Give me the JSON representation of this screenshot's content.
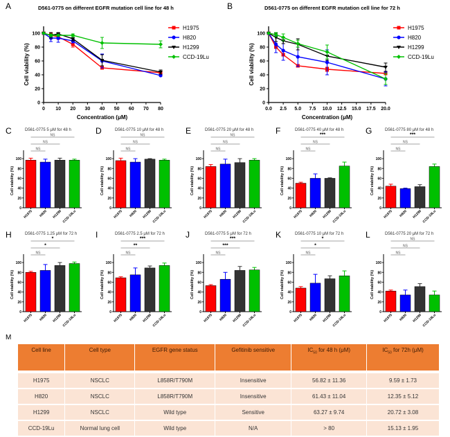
{
  "panels_lines": [
    {
      "label": "A",
      "title": "D561-0775 on different EGFR mutation cell line for 48 h",
      "xlabel": "Concentration  (μM)",
      "ylabel": "Cell viability (%)",
      "xticks": [
        "0",
        "10",
        "20",
        "30",
        "40",
        "50",
        "60",
        "70",
        "80"
      ],
      "yticks": [
        "0",
        "20",
        "40",
        "60",
        "80",
        "100"
      ]
    },
    {
      "label": "B",
      "title": "D561-0775 on different EGFR mutation cell line for 72 h",
      "xlabel": "Concentration  (μM)",
      "ylabel": "Cell viability (%)",
      "xticks": [
        "0.0",
        "2.5",
        "5.0",
        "7.5",
        "10.0",
        "12.5",
        "15.0",
        "17.5",
        "20.0"
      ],
      "yticks": [
        "0",
        "20",
        "40",
        "60",
        "80",
        "100"
      ]
    }
  ],
  "legend": [
    "H1975",
    "H820",
    "H1299",
    "CCD-19Lu"
  ],
  "colors": {
    "H1975": "#ff0000",
    "H820": "#0000ff",
    "H1299": "#000000",
    "CCD-19Lu": "#00c000",
    "bar_H1299": "#333333",
    "table_header": "#ed7d31",
    "table_row": "#fbe4d5"
  },
  "bar_panels": [
    {
      "label": "C",
      "title": "D561-0775 5 μM  for 48 h",
      "ylabel": "Cell viability (%)",
      "sig": [
        "NS",
        "NS",
        "NS"
      ]
    },
    {
      "label": "D",
      "title": "D561-0775 10 μM  for 48 h",
      "ylabel": "Cell viability (%)",
      "sig": [
        "NS",
        "NS",
        "NS"
      ]
    },
    {
      "label": "E",
      "title": "D561-0775 20 μM  for 48 h",
      "ylabel": "Cell viability (%)",
      "sig": [
        "NS",
        "NS",
        "NS"
      ]
    },
    {
      "label": "F",
      "title": "D561-0775 40 μM  for 48 h",
      "ylabel": "Cell viability (%)",
      "sig": [
        "NS",
        "NS",
        "***"
      ]
    },
    {
      "label": "G",
      "title": "D561-0775 80 μM  for 48 h",
      "ylabel": "Cell viability (%)",
      "sig": [
        "NS",
        "NS",
        "***"
      ]
    },
    {
      "label": "H",
      "title": "D561-0775 1.25 μM  for 72 h",
      "ylabel": "Cell viability (%)",
      "sig": [
        "NS",
        "*",
        "*"
      ]
    },
    {
      "label": "I",
      "title": "D561-0775 2.5 μM  for 72 h",
      "ylabel": "Cell viability (%)",
      "sig": [
        "NS",
        "**",
        "***"
      ]
    },
    {
      "label": "J",
      "title": "D561-0775 5 μM  for 72 h",
      "ylabel": "Cell viability (%)",
      "sig": [
        "NS",
        "***",
        "***"
      ]
    },
    {
      "label": "K",
      "title": "D561-0775 10 μM  for 72 h",
      "ylabel": "Cell viability (%)",
      "sig": [
        "NS",
        "*",
        "*"
      ]
    },
    {
      "label": "L",
      "title": "D561-0775 20 μM  for 72 h",
      "ylabel": "Cell viability (%)",
      "sig": [
        "NS",
        "NS",
        "NS"
      ]
    }
  ],
  "bar_yticks": [
    "0",
    "20",
    "40",
    "60",
    "80",
    "100"
  ],
  "table": {
    "label": "M",
    "headers": [
      "Cell line",
      "Cell type",
      "EGFR gene status",
      "Gefitinib sensitive",
      "IC50 for 48 h (μM)",
      "IC50 for 72h (μM)"
    ],
    "rows": [
      [
        "H1975",
        "NSCLC",
        "L858R/T790M",
        "Insensitive",
        "56.82 ± 11.36",
        "9.59 ± 1.73"
      ],
      [
        "H820",
        "NSCLC",
        "L858R/T790M",
        "Insensitive",
        "61.43 ± 11.04",
        "12.35 ± 5.12"
      ],
      [
        "H1299",
        "NSCLC",
        "Wild type",
        "Sensitive",
        "63.27 ± 9.74",
        "20.72 ± 3.08"
      ],
      [
        "CCD-19Lu",
        "Normal lung cell",
        "Wild type",
        "N/A",
        "> 80",
        "15.13 ± 1.95"
      ]
    ]
  },
  "chart_data": [
    {
      "type": "line",
      "panel": "A",
      "title": "D561-0775 on different EGFR mutation cell line for 48 h",
      "xlabel": "Concentration  (μM)",
      "ylabel": "Cell viability (%)",
      "xlim": [
        0,
        80
      ],
      "ylim": [
        0,
        110
      ],
      "legend": "right",
      "x": [
        0,
        5,
        10,
        20,
        40,
        80
      ],
      "series": [
        {
          "name": "H1975",
          "values": [
            100,
            97,
            95,
            84,
            50,
            43
          ],
          "err": [
            0,
            3,
            4,
            4,
            2,
            4
          ]
        },
        {
          "name": "H820",
          "values": [
            100,
            93,
            93,
            89,
            60,
            39
          ],
          "err": [
            0,
            5,
            6,
            3,
            10,
            1
          ]
        },
        {
          "name": "H1299",
          "values": [
            100,
            97,
            99,
            92,
            61,
            44
          ],
          "err": [
            0,
            4,
            2,
            3,
            8,
            3
          ]
        },
        {
          "name": "CCD-19Lu",
          "values": [
            100,
            97,
            97,
            97,
            86,
            84
          ],
          "err": [
            0,
            2,
            1,
            2,
            8,
            5
          ]
        }
      ]
    },
    {
      "type": "line",
      "panel": "B",
      "title": "D561-0775 on different EGFR mutation cell line for 72 h",
      "xlabel": "Concentration  (μM)",
      "ylabel": "Cell viability (%)",
      "xlim": [
        0,
        20
      ],
      "ylim": [
        0,
        110
      ],
      "legend": "right",
      "x": [
        0,
        1.25,
        2.5,
        5,
        10,
        20
      ],
      "series": [
        {
          "name": "H1975",
          "values": [
            100,
            80,
            69,
            53,
            48,
            42
          ],
          "err": [
            0,
            2,
            2,
            2,
            3,
            2
          ]
        },
        {
          "name": "H820",
          "values": [
            100,
            84,
            75,
            66,
            58,
            34
          ],
          "err": [
            0,
            12,
            14,
            14,
            18,
            10
          ]
        },
        {
          "name": "H1299",
          "values": [
            100,
            94,
            89,
            84,
            67,
            51
          ],
          "err": [
            0,
            6,
            4,
            8,
            6,
            6
          ]
        },
        {
          "name": "CCD-19Lu",
          "values": [
            100,
            98,
            94,
            85,
            73,
            34
          ],
          "err": [
            0,
            3,
            5,
            5,
            10,
            8
          ]
        }
      ]
    },
    {
      "type": "bar",
      "panel": "C",
      "categories": [
        "H1975",
        "H820",
        "H1299",
        "CCD-19Lu"
      ],
      "values": [
        97,
        93,
        97,
        97
      ],
      "err": [
        4,
        6,
        4,
        2
      ],
      "ylim": [
        0,
        110
      ]
    },
    {
      "type": "bar",
      "panel": "D",
      "categories": [
        "H1975",
        "H820",
        "H1299",
        "CCD-19Lu"
      ],
      "values": [
        96,
        93,
        99,
        97
      ],
      "err": [
        5,
        7,
        1,
        2
      ],
      "ylim": [
        0,
        110
      ]
    },
    {
      "type": "bar",
      "panel": "E",
      "categories": [
        "H1975",
        "H820",
        "H1299",
        "CCD-19Lu"
      ],
      "values": [
        84,
        89,
        92,
        97
      ],
      "err": [
        4,
        10,
        8,
        3
      ],
      "ylim": [
        0,
        110
      ]
    },
    {
      "type": "bar",
      "panel": "F",
      "categories": [
        "H1975",
        "H820",
        "H1299",
        "CCD-19Lu"
      ],
      "values": [
        50,
        60,
        60,
        85
      ],
      "err": [
        2,
        9,
        1,
        8
      ],
      "ylim": [
        0,
        110
      ]
    },
    {
      "type": "bar",
      "panel": "G",
      "categories": [
        "H1975",
        "H820",
        "H1299",
        "CCD-19Lu"
      ],
      "values": [
        44,
        39,
        43,
        84
      ],
      "err": [
        4,
        1,
        4,
        5
      ],
      "ylim": [
        0,
        110
      ]
    },
    {
      "type": "bar",
      "panel": "H",
      "categories": [
        "H1975",
        "H820",
        "H1299",
        "CCD-19Lu"
      ],
      "values": [
        80,
        84,
        94,
        98
      ],
      "err": [
        2,
        12,
        6,
        3
      ],
      "ylim": [
        0,
        110
      ]
    },
    {
      "type": "bar",
      "panel": "I",
      "categories": [
        "H1975",
        "H820",
        "H1299",
        "CCD-19Lu"
      ],
      "values": [
        69,
        75,
        89,
        94
      ],
      "err": [
        2,
        14,
        4,
        5
      ],
      "ylim": [
        0,
        110
      ]
    },
    {
      "type": "bar",
      "panel": "J",
      "categories": [
        "H1975",
        "H820",
        "H1299",
        "CCD-19Lu"
      ],
      "values": [
        53,
        66,
        84,
        85
      ],
      "err": [
        2,
        14,
        8,
        5
      ],
      "ylim": [
        0,
        110
      ]
    },
    {
      "type": "bar",
      "panel": "K",
      "categories": [
        "H1975",
        "H820",
        "H1299",
        "CCD-19Lu"
      ],
      "values": [
        48,
        58,
        67,
        73
      ],
      "err": [
        3,
        18,
        6,
        10
      ],
      "ylim": [
        0,
        110
      ]
    },
    {
      "type": "bar",
      "panel": "L",
      "categories": [
        "H1975",
        "H820",
        "H1299",
        "CCD-19Lu"
      ],
      "values": [
        42,
        34,
        51,
        34
      ],
      "err": [
        2,
        10,
        6,
        8
      ],
      "ylim": [
        0,
        110
      ]
    }
  ]
}
